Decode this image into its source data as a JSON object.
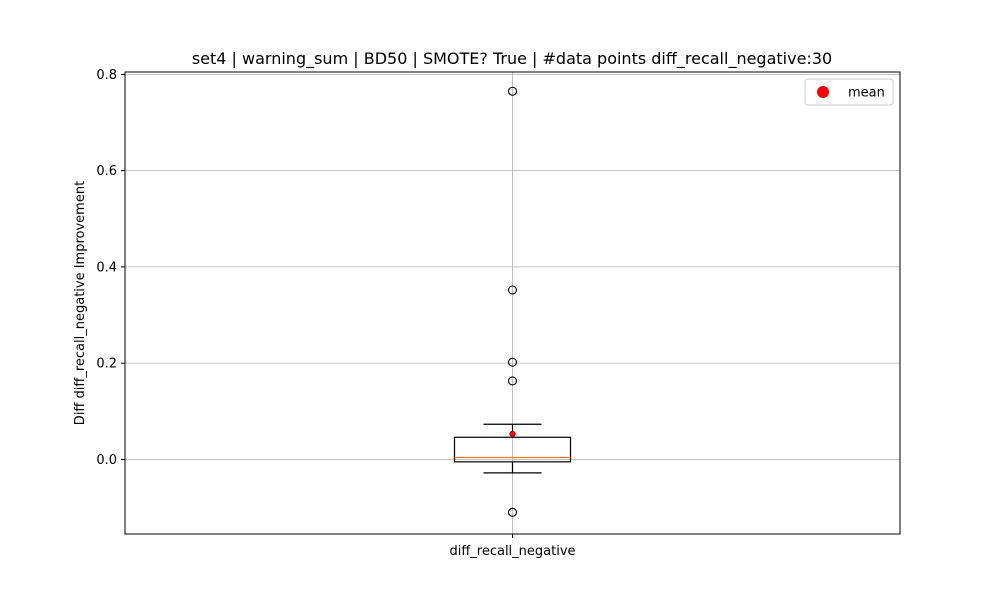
{
  "chart_data": {
    "type": "box",
    "title": "set4 | warning_sum | BD50 | SMOTE? True | #data points diff_recall_negative:30",
    "xlabel": "",
    "ylabel": "Diff diff_recall_negative Improvement",
    "categories": [
      "diff_recall_negative"
    ],
    "ylim": [
      -0.155,
      0.805
    ],
    "yticks": [
      0.0,
      0.2,
      0.4,
      0.6,
      0.8
    ],
    "ytick_labels": [
      "0.0",
      "0.2",
      "0.4",
      "0.6",
      "0.8"
    ],
    "grid": true,
    "legend": {
      "position": "top-right",
      "entries": [
        {
          "label": "mean",
          "color": "#ff0000",
          "marker": "circle"
        }
      ]
    },
    "series": [
      {
        "category": "diff_recall_negative",
        "whisker_low": -0.028,
        "q1": -0.005,
        "median": 0.004,
        "q3": 0.046,
        "whisker_high": 0.073,
        "mean": 0.053,
        "outliers": [
          0.765,
          0.352,
          0.202,
          0.163,
          -0.11
        ]
      }
    ],
    "colors": {
      "box": "#000000",
      "median": "#ff7f0e",
      "mean": "#ff0000",
      "grid": "#b0b0b0"
    }
  }
}
